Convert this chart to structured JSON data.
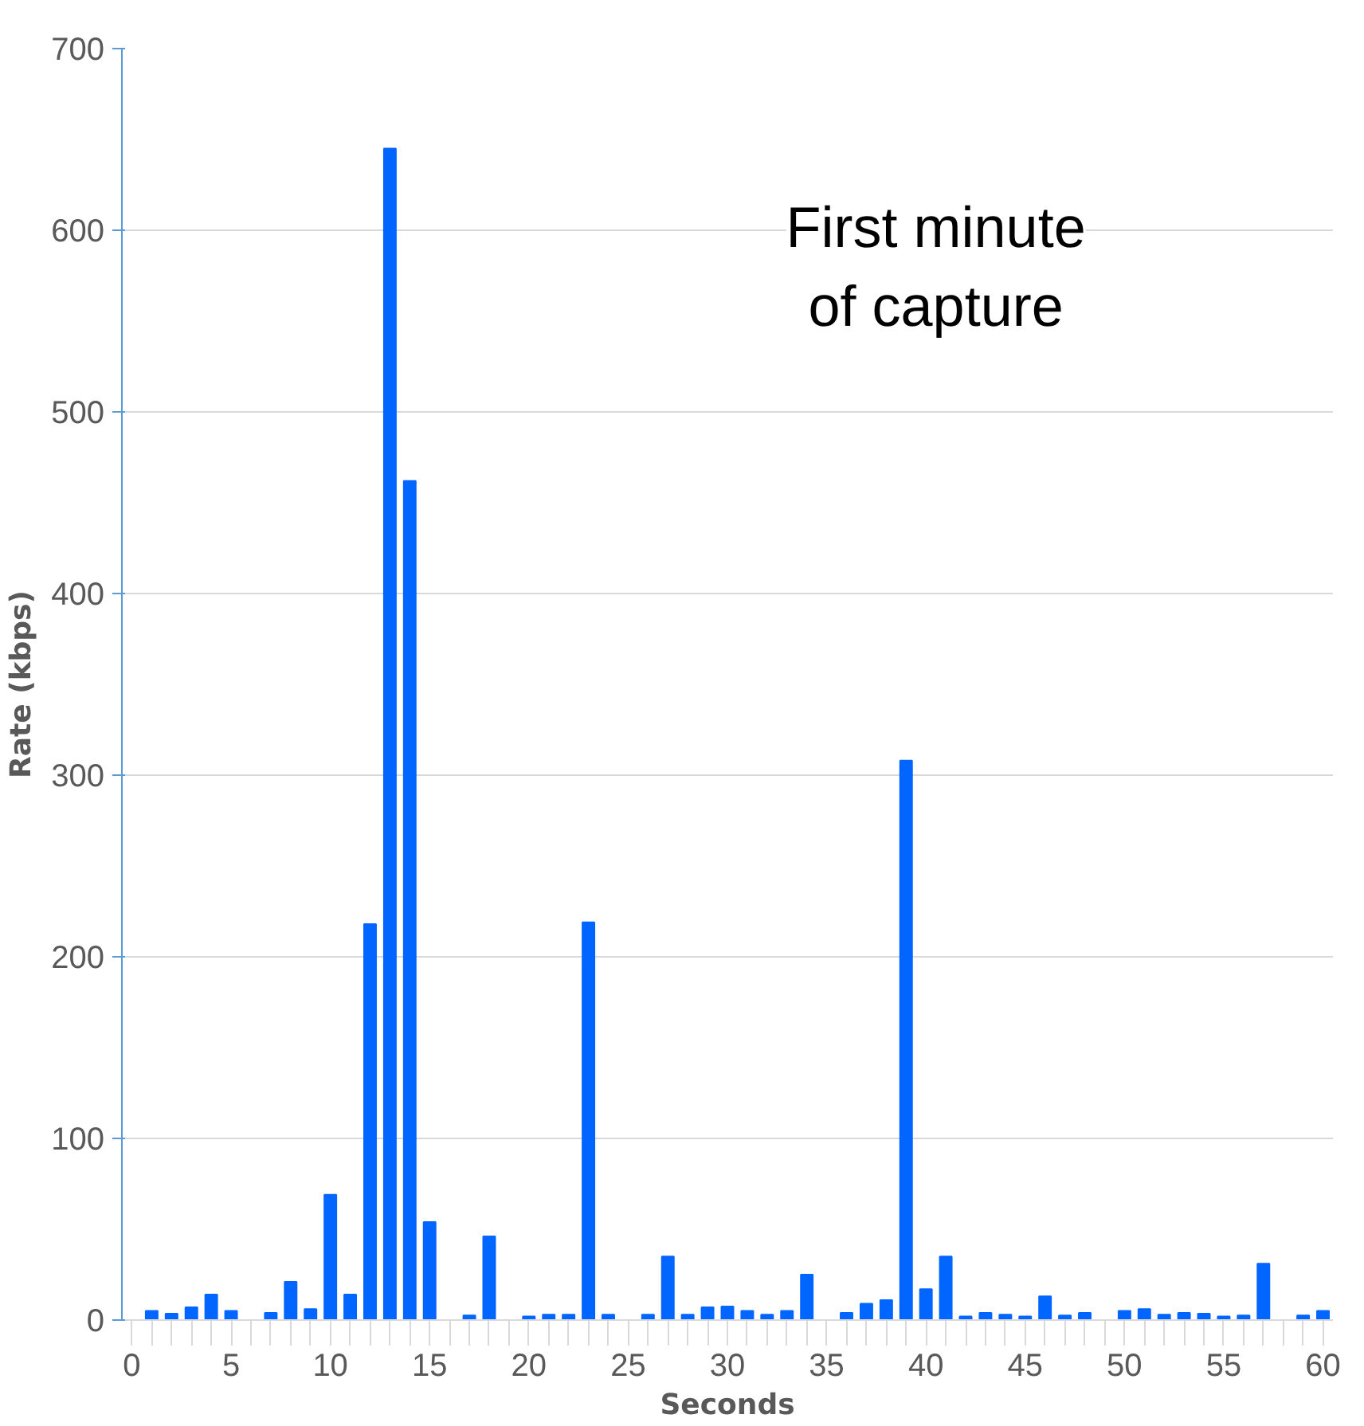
{
  "chart_data": {
    "type": "bar",
    "title": "First minute\nof capture",
    "xlabel": "Seconds",
    "ylabel": "Rate (kbps)",
    "x": [
      1,
      2,
      3,
      4,
      5,
      6,
      7,
      8,
      9,
      10,
      11,
      12,
      13,
      14,
      15,
      16,
      17,
      18,
      19,
      20,
      21,
      22,
      23,
      24,
      25,
      26,
      27,
      28,
      29,
      30,
      31,
      32,
      33,
      34,
      35,
      36,
      37,
      38,
      39,
      40,
      41,
      42,
      43,
      44,
      45,
      46,
      47,
      48,
      49,
      50,
      51,
      52,
      53,
      54,
      55,
      56,
      57,
      58,
      59,
      60
    ],
    "values": [
      5,
      3.5,
      7,
      14,
      5,
      0,
      4,
      21,
      6,
      69,
      14,
      218,
      645,
      462,
      54,
      0,
      2.5,
      46,
      0,
      2,
      3,
      3,
      219,
      3,
      0,
      3,
      35,
      3,
      7,
      7.5,
      5,
      3,
      5,
      25,
      0,
      4,
      9,
      11,
      308,
      17,
      35,
      2,
      4,
      3,
      2,
      13,
      2.5,
      4,
      0,
      5,
      6,
      3,
      4,
      3.5,
      2,
      2.5,
      31,
      0,
      2.5,
      5
    ],
    "color": "#0066ff",
    "xlim": [
      -0.5,
      60.5
    ],
    "xticks": [
      0,
      5,
      10,
      15,
      20,
      25,
      30,
      35,
      40,
      45,
      50,
      55,
      60
    ],
    "ylim": [
      0,
      700
    ],
    "yticks": [
      0,
      100,
      200,
      300,
      400,
      500,
      600,
      700
    ],
    "grid": "y"
  }
}
